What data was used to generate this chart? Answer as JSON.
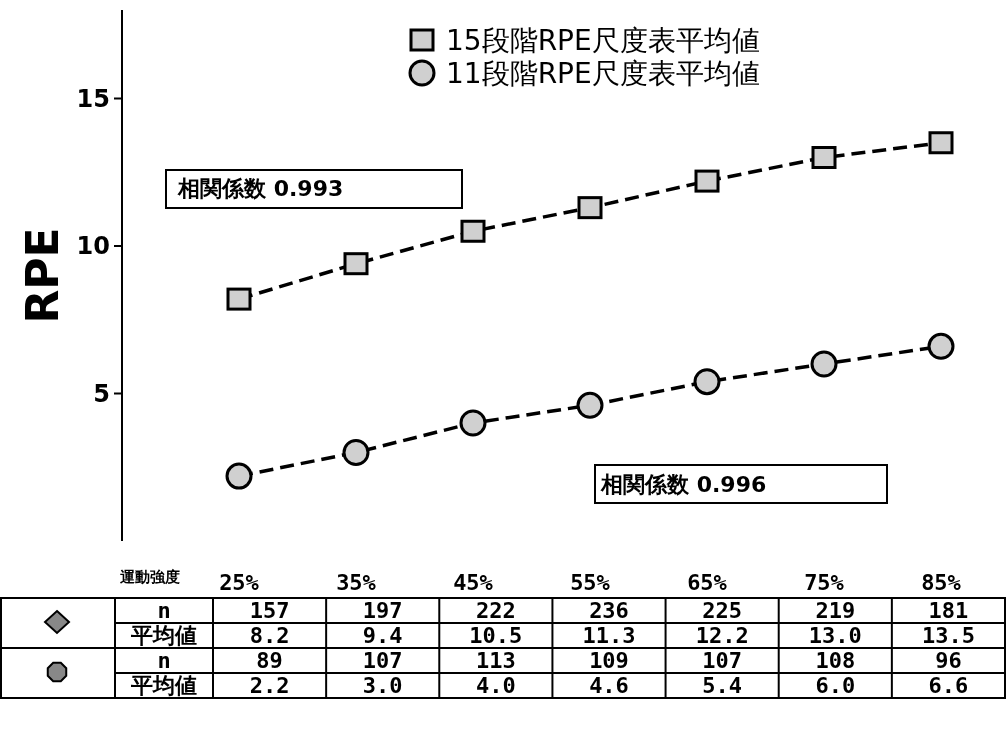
{
  "chart_data": {
    "type": "line",
    "ylabel": "RPE",
    "categories": [
      "25%",
      "35%",
      "45%",
      "55%",
      "65%",
      "75%",
      "85%"
    ],
    "series": [
      {
        "name": "15段階RPE尺度表平均値",
        "color": "#d0d0d0",
        "marker": "square",
        "values": [
          8.2,
          9.4,
          10.5,
          11.3,
          12.2,
          13.0,
          13.5
        ],
        "value_labels": [
          "8.2",
          "9.4",
          "10.5",
          "11.3",
          "12.2",
          "13.0",
          "13.5"
        ]
      },
      {
        "name": "11段階RPE尺度表平均値",
        "color": "#d0d0d0",
        "marker": "circle",
        "values": [
          2.2,
          3.0,
          4.0,
          4.6,
          5.4,
          6.0,
          6.6
        ],
        "value_labels": [
          "2.2",
          "3.0",
          "4.0",
          "4.6",
          "5.4",
          "6.0",
          "6.6"
        ]
      }
    ],
    "ylim": [
      0,
      18
    ],
    "yticks": [
      5,
      10,
      15
    ],
    "grid": false,
    "legend": "top right",
    "line_style": "dashed",
    "annotations": [
      "相関係数 0.993",
      "相関係数 0.996",
      "運動強度",
      "n",
      "平均値",
      "157",
      "197",
      "222",
      "236",
      "225",
      "219",
      "181",
      "89",
      "107",
      "113",
      "109",
      "107",
      "108",
      "96"
    ]
  }
}
